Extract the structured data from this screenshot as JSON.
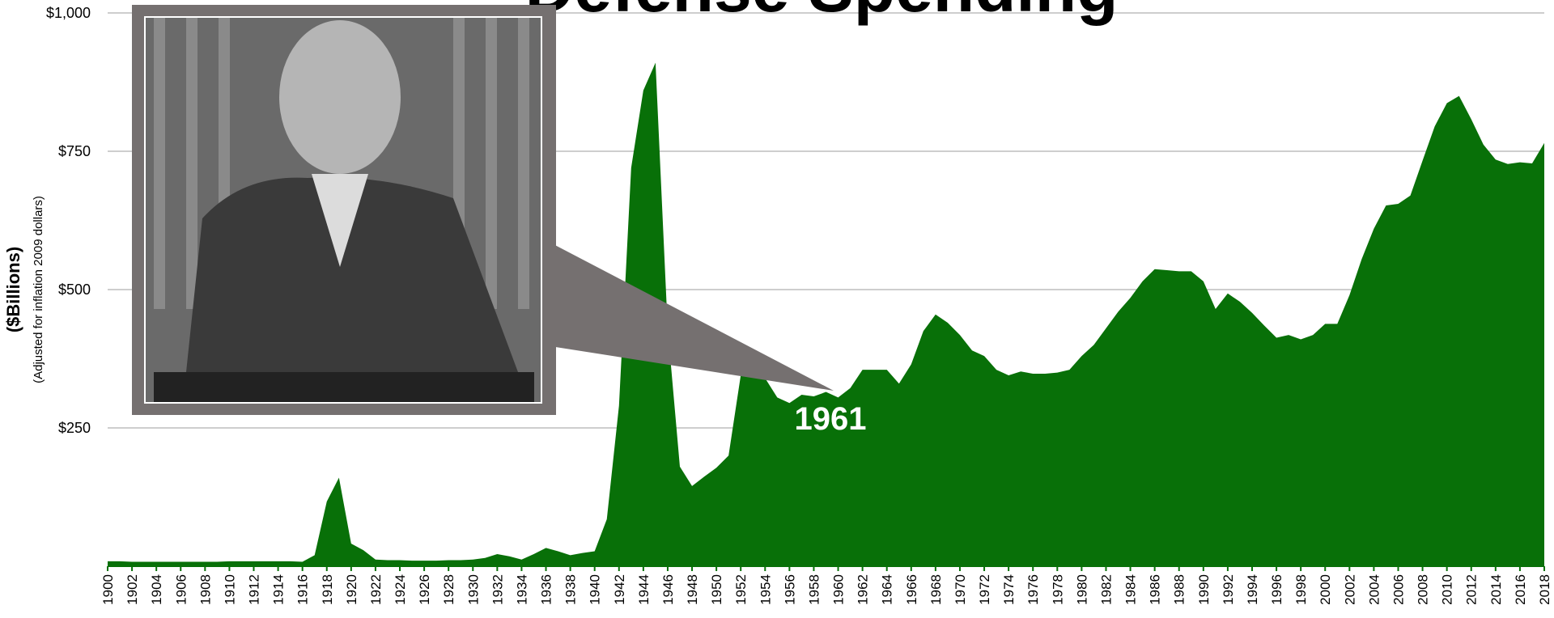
{
  "chart_data": {
    "type": "area",
    "title": "Defense Spending",
    "ylabel": "($Billions)",
    "ylabel_note": "(Adjusted for inflation 2009 dollars)",
    "annotation": "1961",
    "color": "#087008",
    "grid": true,
    "x": [
      1900,
      1901,
      1902,
      1903,
      1904,
      1905,
      1906,
      1907,
      1908,
      1909,
      1910,
      1911,
      1912,
      1913,
      1914,
      1915,
      1916,
      1917,
      1918,
      1919,
      1920,
      1921,
      1922,
      1923,
      1924,
      1925,
      1926,
      1927,
      1928,
      1929,
      1930,
      1931,
      1932,
      1933,
      1934,
      1935,
      1936,
      1937,
      1938,
      1939,
      1940,
      1941,
      1942,
      1943,
      1944,
      1945,
      1946,
      1947,
      1948,
      1949,
      1950,
      1951,
      1952,
      1953,
      1954,
      1955,
      1956,
      1957,
      1958,
      1959,
      1960,
      1961,
      1962,
      1963,
      1964,
      1965,
      1966,
      1967,
      1968,
      1969,
      1970,
      1971,
      1972,
      1973,
      1974,
      1975,
      1976,
      1977,
      1978,
      1979,
      1980,
      1981,
      1982,
      1983,
      1984,
      1985,
      1986,
      1987,
      1988,
      1989,
      1990,
      1991,
      1992,
      1993,
      1994,
      1995,
      1996,
      1997,
      1998,
      1999,
      2000,
      2001,
      2002,
      2003,
      2004,
      2005,
      2006,
      2007,
      2008,
      2009,
      2010,
      2011,
      2012,
      2013,
      2014,
      2015,
      2016,
      2017,
      2018
    ],
    "values": [
      9,
      9,
      8,
      8,
      8,
      8,
      8,
      8,
      8,
      8,
      9,
      9,
      9,
      9,
      9,
      9,
      8,
      20,
      117,
      160,
      41,
      29,
      12,
      11,
      11,
      10,
      10,
      10,
      11,
      11,
      12,
      15,
      22,
      18,
      12,
      22,
      33,
      27,
      20,
      24,
      27,
      85,
      290,
      720,
      860,
      910,
      430,
      180,
      145,
      162,
      178,
      200,
      345,
      370,
      340,
      305,
      295,
      310,
      307,
      315,
      305,
      322,
      355,
      355,
      355,
      330,
      365,
      425,
      455,
      440,
      418,
      390,
      380,
      355,
      345,
      352,
      348,
      348,
      350,
      355,
      380,
      400,
      430,
      460,
      485,
      515,
      537,
      535,
      533,
      533,
      515,
      465,
      493,
      478,
      458,
      435,
      413,
      418,
      410,
      418,
      438,
      438,
      490,
      555,
      610,
      652,
      655,
      670,
      733,
      795,
      837,
      850,
      808,
      762,
      735,
      727,
      730,
      728,
      765
    ],
    "xlim": [
      1900,
      2018
    ],
    "xticks": [
      1900,
      1902,
      1904,
      1906,
      1908,
      1910,
      1912,
      1914,
      1916,
      1918,
      1920,
      1922,
      1924,
      1926,
      1928,
      1930,
      1932,
      1934,
      1936,
      1938,
      1940,
      1942,
      1944,
      1946,
      1948,
      1950,
      1952,
      1954,
      1956,
      1958,
      1960,
      1962,
      1964,
      1966,
      1968,
      1970,
      1972,
      1974,
      1976,
      1978,
      1980,
      1982,
      1984,
      1986,
      1988,
      1990,
      1992,
      1994,
      1996,
      1998,
      2000,
      2002,
      2004,
      2006,
      2008,
      2010,
      2012,
      2014,
      2016,
      2018
    ],
    "ylim": [
      0,
      1000
    ],
    "yticks": [
      {
        "value": 250,
        "label": "$250"
      },
      {
        "value": 500,
        "label": "$500"
      },
      {
        "value": 750,
        "label": "$750"
      },
      {
        "value": 1000,
        "label": "$1,000"
      }
    ]
  }
}
